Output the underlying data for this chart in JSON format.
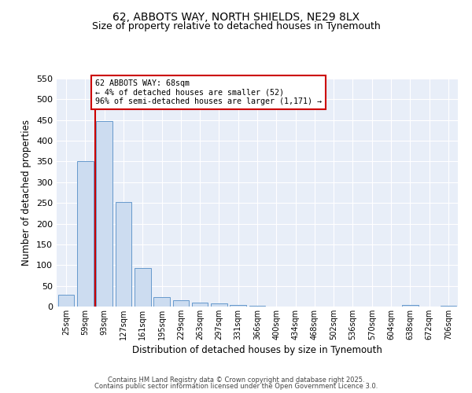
{
  "title_line1": "62, ABBOTS WAY, NORTH SHIELDS, NE29 8LX",
  "title_line2": "Size of property relative to detached houses in Tynemouth",
  "xlabel": "Distribution of detached houses by size in Tynemouth",
  "ylabel": "Number of detached properties",
  "bar_labels": [
    "25sqm",
    "59sqm",
    "93sqm",
    "127sqm",
    "161sqm",
    "195sqm",
    "229sqm",
    "263sqm",
    "297sqm",
    "331sqm",
    "366sqm",
    "400sqm",
    "434sqm",
    "468sqm",
    "502sqm",
    "536sqm",
    "570sqm",
    "604sqm",
    "638sqm",
    "672sqm",
    "706sqm"
  ],
  "bar_values": [
    28,
    350,
    448,
    252,
    93,
    23,
    15,
    10,
    7,
    4,
    1,
    0,
    0,
    0,
    0,
    0,
    0,
    0,
    3,
    0,
    2
  ],
  "bar_color": "#ccdcf0",
  "bar_edgecolor": "#6699cc",
  "vline_x": 1.5,
  "vline_color": "#cc0000",
  "annotation_text": "62 ABBOTS WAY: 68sqm\n← 4% of detached houses are smaller (52)\n96% of semi-detached houses are larger (1,171) →",
  "annotation_box_color": "#ffffff",
  "annotation_box_edgecolor": "#cc0000",
  "ylim": [
    0,
    550
  ],
  "yticks": [
    0,
    50,
    100,
    150,
    200,
    250,
    300,
    350,
    400,
    450,
    500,
    550
  ],
  "footer_line1": "Contains HM Land Registry data © Crown copyright and database right 2025.",
  "footer_line2": "Contains public sector information licensed under the Open Government Licence 3.0.",
  "fig_bg_color": "#ffffff",
  "plot_bg_color": "#e8eef8"
}
